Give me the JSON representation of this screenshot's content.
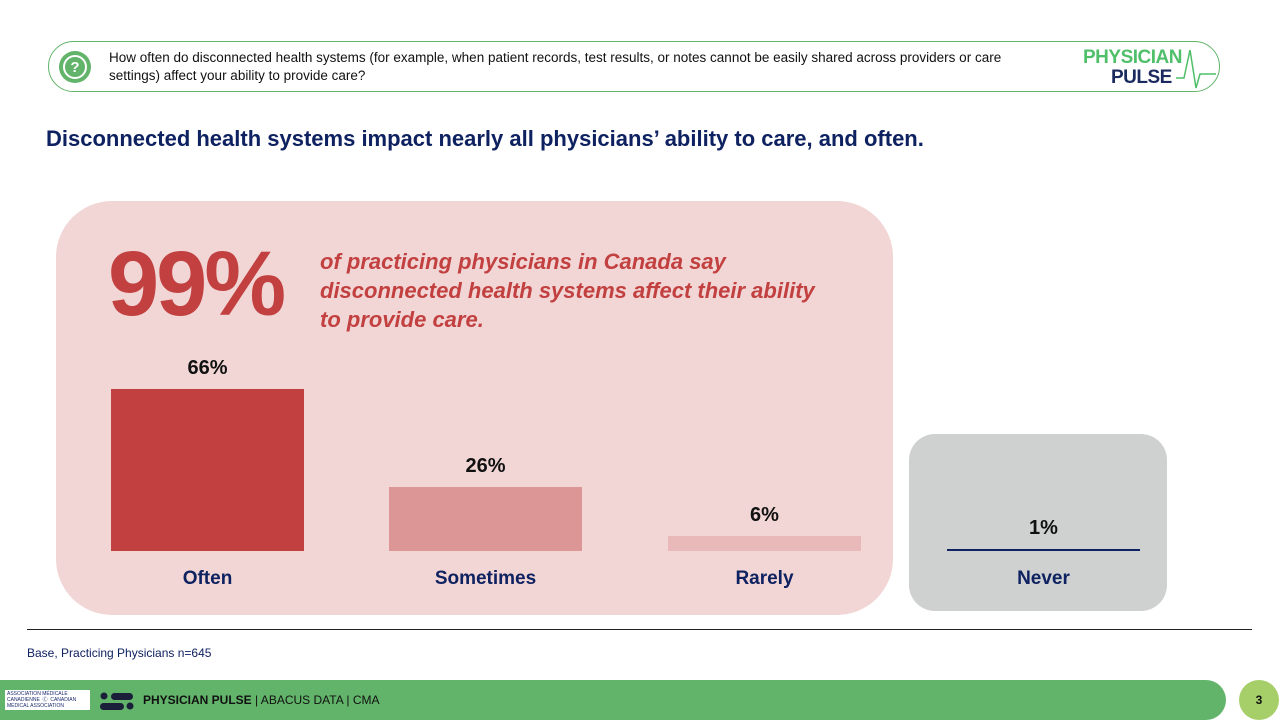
{
  "question": {
    "text": "How often do disconnected health systems (for example, when patient records, test results, or notes cannot be easily shared across providers or care settings) affect your ability to provide care?"
  },
  "logo": {
    "line1": "PHYSICIAN",
    "line2": "PULSE"
  },
  "headline": "Disconnected health systems impact nearly all physicians’ ability to care, and often.",
  "callout": {
    "value": "99%",
    "text": "of practicing physicians in Canada say disconnected health systems affect their ability to provide care."
  },
  "chart_data": {
    "type": "bar",
    "categories": [
      "Often",
      "Sometimes",
      "Rarely",
      "Never"
    ],
    "values": [
      66,
      26,
      6,
      1
    ],
    "labels": [
      "66%",
      "26%",
      "6%",
      "1%"
    ],
    "colors": [
      "#c24040",
      "#dd9696",
      "#e8b9b8",
      "#0e2160"
    ],
    "ylim": [
      0,
      100
    ]
  },
  "base": "Base, Practicing Physicians n=645",
  "footer": {
    "cma_logo": "ASSOCIATION MÉDICALE CANADIENNE | CANADIAN MEDICAL ASSOCIATION",
    "brand": "PHYSICIAN PULSE",
    "rest": " | ABACUS DATA | CMA",
    "page": "3"
  }
}
